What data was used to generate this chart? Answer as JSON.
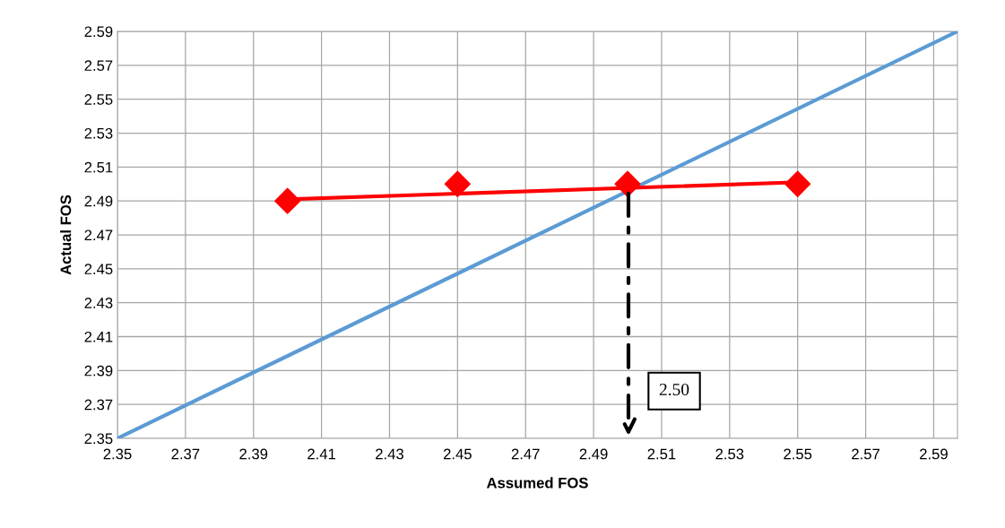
{
  "chart_data": {
    "type": "scatter",
    "xlabel": "Assumed FOS",
    "ylabel": "Actual FOS",
    "xlim": [
      2.35,
      2.597
    ],
    "ylim": [
      2.35,
      2.59
    ],
    "xticks": [
      2.35,
      2.37,
      2.39,
      2.41,
      2.43,
      2.45,
      2.47,
      2.49,
      2.51,
      2.53,
      2.55,
      2.57,
      2.59
    ],
    "yticks": [
      2.35,
      2.37,
      2.39,
      2.41,
      2.43,
      2.45,
      2.47,
      2.49,
      2.51,
      2.53,
      2.55,
      2.57,
      2.59
    ],
    "grid": true,
    "legend": false,
    "series": [
      {
        "type": "line",
        "color": "#5b9bd5",
        "marker": "none",
        "x": [
          2.35,
          2.597
        ],
        "values": [
          2.35,
          2.59
        ]
      },
      {
        "type": "line",
        "color": "#ff0000",
        "marker": "none",
        "x": [
          2.4,
          2.55
        ],
        "values": [
          2.491,
          2.501
        ]
      },
      {
        "color": "#ff0000",
        "marker": "diamond",
        "x": [
          2.4,
          2.45,
          2.5,
          2.55
        ],
        "values": [
          2.49,
          2.5,
          2.5,
          2.5
        ]
      }
    ],
    "annotations": [
      "2.50"
    ]
  }
}
